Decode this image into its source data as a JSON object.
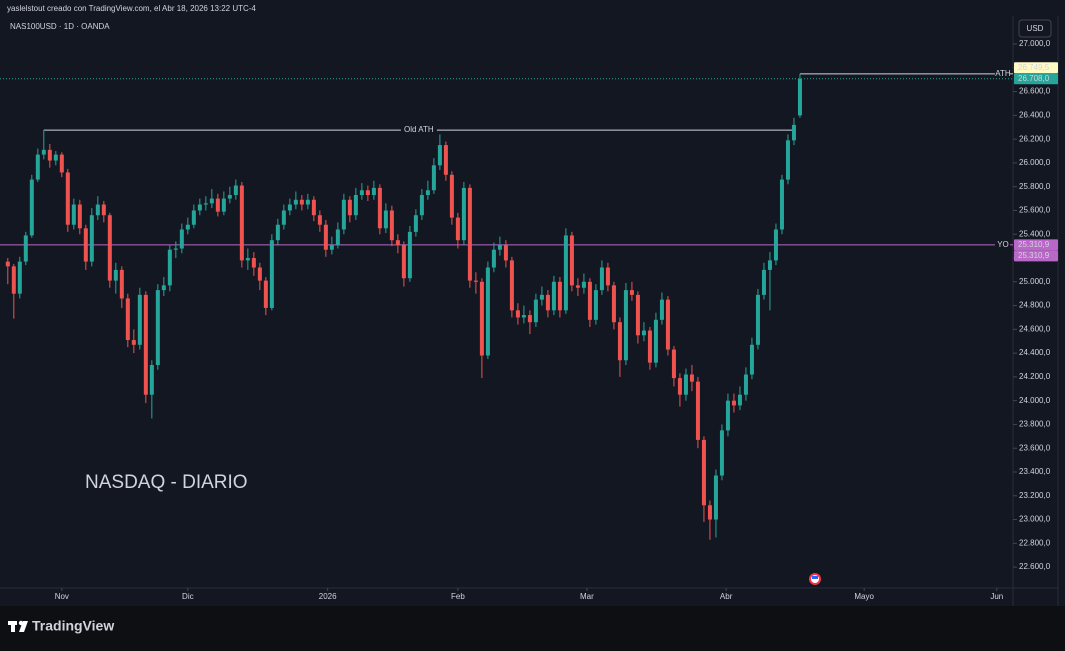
{
  "header": {
    "caption": "yaslelstout creado con TradingView.com, el Abr 18, 2026 13:22 UTC-4",
    "brand": "TradingView"
  },
  "chart_data": {
    "type": "candlestick",
    "symbol": "NAS100USD · 1D · OANDA",
    "title": "NASDAQ - DIARIO",
    "currency": "USD",
    "up_color": "#26a69a",
    "down_color": "#ef5350",
    "grid": false,
    "open": [
      25170,
      25130,
      24900,
      25170,
      25390,
      25860,
      26070,
      26110,
      26020,
      26070,
      25920,
      25480,
      25650,
      25450,
      25170,
      25560,
      25650,
      25560,
      25010,
      25100,
      24860,
      24510,
      24470,
      24890,
      24050,
      24300,
      24930,
      24970,
      25270,
      25280,
      25440,
      25480,
      25600,
      25650,
      25660,
      25700,
      25590,
      25700,
      25730,
      25810,
      25180,
      25200,
      25120,
      25010,
      24780,
      25350,
      25480,
      25600,
      25650,
      25690,
      25650,
      25690,
      25560,
      25480,
      25270,
      25310,
      25440,
      25690,
      25560,
      25730,
      25770,
      25730,
      25790,
      25450,
      25600,
      25350,
      25310,
      25030,
      25420,
      25560,
      25730,
      25770,
      25980,
      26150,
      25900,
      25540,
      25350,
      25790,
      25010,
      25000,
      24380,
      25120,
      25270,
      25310,
      25180,
      24760,
      24700,
      24720,
      24660,
      24850,
      24890,
      24760,
      25000,
      24760,
      25390,
      24970,
      24950,
      25000,
      24680,
      24930,
      25120,
      24970,
      24660,
      24340,
      24930,
      24890,
      24550,
      24590,
      24320,
      24680,
      24850,
      24430,
      24190,
      24050,
      24220,
      24160,
      23670,
      23120,
      23000,
      23370,
      23750,
      24000,
      23960,
      24050,
      24220,
      24470,
      24890,
      25100,
      25180,
      25440,
      25860,
      26190,
      26400
    ],
    "high": [
      25200,
      25150,
      25210,
      25420,
      25900,
      26120,
      26276,
      26160,
      26100,
      26090,
      25950,
      25700,
      25690,
      25480,
      25620,
      25720,
      25680,
      25580,
      25160,
      25130,
      24900,
      24600,
      24950,
      24920,
      24340,
      24980,
      25040,
      25310,
      25340,
      25490,
      25540,
      25650,
      25700,
      25720,
      25780,
      25740,
      25760,
      25800,
      25860,
      25840,
      25280,
      25250,
      25160,
      25040,
      25400,
      25530,
      25650,
      25700,
      25760,
      25730,
      25740,
      25720,
      25600,
      25520,
      25380,
      25500,
      25740,
      25720,
      25790,
      25830,
      25810,
      25850,
      25820,
      25660,
      25640,
      25400,
      25340,
      25470,
      25610,
      25780,
      25850,
      26040,
      26240,
      26180,
      25930,
      25580,
      25840,
      25820,
      25080,
      25030,
      25170,
      25330,
      25380,
      25350,
      25210,
      24820,
      24800,
      24760,
      24900,
      24960,
      24930,
      25050,
      25040,
      25450,
      25420,
      25030,
      25070,
      25030,
      24980,
      25180,
      25160,
      25000,
      24700,
      24990,
      25000,
      24920,
      24660,
      24620,
      24740,
      24910,
      24880,
      24460,
      24230,
      24270,
      24300,
      24200,
      23700,
      23160,
      23420,
      23800,
      24060,
      24060,
      24120,
      24280,
      24530,
      24940,
      25160,
      25250,
      25490,
      25900,
      26240,
      26380,
      26749.5
    ],
    "low": [
      24980,
      24690,
      24860,
      25140,
      25370,
      25840,
      26030,
      25960,
      25980,
      25880,
      25420,
      25440,
      25400,
      25100,
      25130,
      25520,
      25500,
      24950,
      24900,
      24780,
      24450,
      24400,
      24430,
      23980,
      23850,
      24260,
      24880,
      24920,
      25200,
      25240,
      25400,
      25450,
      25560,
      25600,
      25620,
      25550,
      25560,
      25660,
      25690,
      25120,
      25100,
      25050,
      24930,
      24720,
      24760,
      25310,
      25440,
      25560,
      25610,
      25600,
      25610,
      25510,
      25420,
      25210,
      25230,
      25280,
      25400,
      25500,
      25520,
      25690,
      25680,
      25690,
      25400,
      25410,
      25300,
      25240,
      24960,
      25000,
      25380,
      25520,
      25690,
      25740,
      25940,
      25850,
      25480,
      25280,
      25310,
      24950,
      24900,
      24190,
      24350,
      25080,
      25220,
      25120,
      24700,
      24640,
      24650,
      24560,
      24620,
      24800,
      24700,
      24720,
      24700,
      24730,
      24920,
      24880,
      24900,
      24620,
      24640,
      24890,
      24920,
      24600,
      24200,
      24300,
      24840,
      24480,
      24500,
      24260,
      24280,
      24640,
      24380,
      24120,
      23950,
      24000,
      24080,
      23600,
      22980,
      22830,
      22850,
      23330,
      23700,
      23900,
      23920,
      24000,
      24180,
      24430,
      24850,
      24760,
      25140,
      25400,
      25820,
      26150,
      26380
    ],
    "close": [
      25130,
      24900,
      25170,
      25390,
      25860,
      26070,
      26110,
      26020,
      26070,
      25920,
      25480,
      25650,
      25450,
      25170,
      25560,
      25650,
      25560,
      25010,
      25100,
      24860,
      24510,
      24470,
      24890,
      24050,
      24300,
      24930,
      24970,
      25270,
      25280,
      25440,
      25480,
      25600,
      25650,
      25660,
      25700,
      25590,
      25700,
      25730,
      25810,
      25180,
      25200,
      25120,
      25010,
      24780,
      25350,
      25480,
      25600,
      25650,
      25690,
      25650,
      25690,
      25560,
      25480,
      25270,
      25310,
      25440,
      25690,
      25560,
      25730,
      25770,
      25730,
      25790,
      25450,
      25600,
      25350,
      25310,
      25030,
      25420,
      25560,
      25730,
      25770,
      25980,
      26150,
      25900,
      25540,
      25350,
      25790,
      25010,
      25000,
      24380,
      25120,
      25270,
      25310,
      25180,
      24760,
      24700,
      24720,
      24660,
      24850,
      24890,
      24760,
      25000,
      24760,
      25390,
      24970,
      24950,
      25000,
      24680,
      24930,
      25120,
      24970,
      24660,
      24340,
      24930,
      24890,
      24550,
      24590,
      24320,
      24680,
      24850,
      24430,
      24190,
      24050,
      24220,
      24160,
      23670,
      23120,
      23000,
      23370,
      23750,
      24000,
      23960,
      24050,
      24220,
      24470,
      24890,
      25100,
      25180,
      25440,
      25860,
      26190,
      26320,
      26708
    ],
    "xlim": [
      -1.3,
      167.5
    ],
    "xticks": [
      {
        "value": 9,
        "label": "Nov"
      },
      {
        "value": 30,
        "label": "Dic"
      },
      {
        "value": 53.3,
        "label": "2026"
      },
      {
        "value": 75,
        "label": "Feb"
      },
      {
        "value": 96.5,
        "label": "Mar"
      },
      {
        "value": 119.7,
        "label": "Abr"
      },
      {
        "value": 142.7,
        "label": "Mayo"
      },
      {
        "value": 164.8,
        "label": "Jun"
      }
    ],
    "ylim": [
      22424,
      27236
    ],
    "yticks": [
      {
        "value": 22600,
        "label": "22.600,0"
      },
      {
        "value": 22800,
        "label": "22.800,0"
      },
      {
        "value": 23000,
        "label": "23.000,0"
      },
      {
        "value": 23200,
        "label": "23.200,0"
      },
      {
        "value": 23400,
        "label": "23.400,0"
      },
      {
        "value": 23600,
        "label": "23.600,0"
      },
      {
        "value": 23800,
        "label": "23.800,0"
      },
      {
        "value": 24000,
        "label": "24.000,0"
      },
      {
        "value": 24200,
        "label": "24.200,0"
      },
      {
        "value": 24400,
        "label": "24.400,0"
      },
      {
        "value": 24600,
        "label": "24.600,0"
      },
      {
        "value": 24800,
        "label": "24.800,0"
      },
      {
        "value": 25000,
        "label": "25.000,0"
      },
      {
        "value": 25200,
        "label": "25.200,0"
      },
      {
        "value": 25400,
        "label": "25.400,0"
      },
      {
        "value": 25600,
        "label": "25.600,0"
      },
      {
        "value": 25800,
        "label": "25.800,0"
      },
      {
        "value": 26000,
        "label": "26.000,0"
      },
      {
        "value": 26200,
        "label": "26.200,0"
      },
      {
        "value": 26400,
        "label": "26.400,0"
      },
      {
        "value": 26600,
        "label": "26.600,0"
      },
      {
        "value": 26800,
        "label": "26.800,0"
      },
      {
        "value": 27000,
        "label": "27.000,0"
      }
    ],
    "last_price": {
      "value": 26708,
      "label": "26.708,0",
      "color": "#26a69a"
    },
    "lines": [
      {
        "label": "Old  ATH",
        "value": 26276,
        "from": 6,
        "to": 131,
        "color": "#d1d4dc"
      },
      {
        "label": "ATH",
        "value": 26749.5,
        "from": 132,
        "color": "#d1d4dc",
        "value_labels": [
          "26.749,5"
        ],
        "label_color": "#fff9c4"
      },
      {
        "label": "YO",
        "value": 25310.9,
        "color": "#ba68c8",
        "value_labels": [
          "25.310,9",
          "25.310,9"
        ],
        "label_color": "#ba68c8"
      }
    ]
  }
}
